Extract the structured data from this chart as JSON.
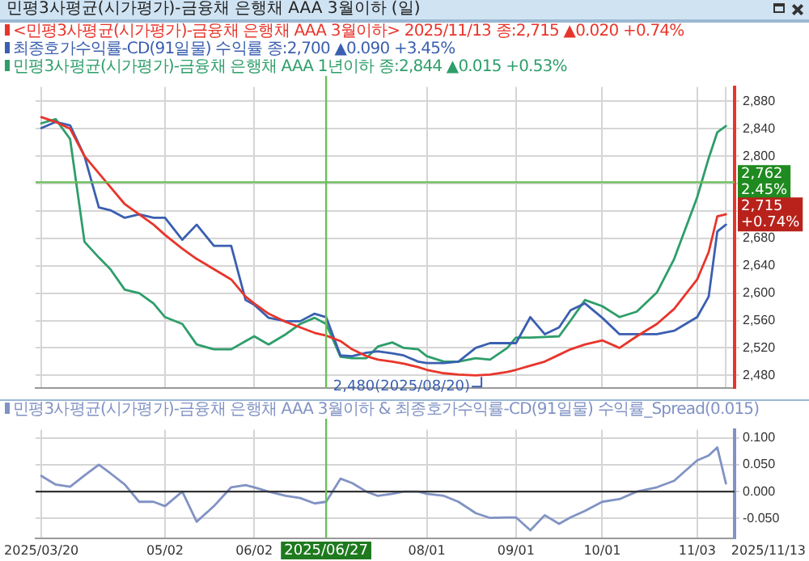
{
  "chart_data": [
    {
      "type": "line",
      "title": "민평3사평균(시가평가)-금융채 은행채 AAA 3월이하 (일)",
      "x": [
        "2025-03-20",
        "2025-03-25",
        "2025-03-30",
        "2025-04-04",
        "2025-04-09",
        "2025-04-13",
        "2025-04-18",
        "2025-04-23",
        "2025-04-28",
        "2025-05-02",
        "2025-05-08",
        "2025-05-13",
        "2025-05-19",
        "2025-05-25",
        "2025-05-30",
        "2025-06-02",
        "2025-06-07",
        "2025-06-13",
        "2025-06-18",
        "2025-06-23",
        "2025-06-27",
        "2025-07-02",
        "2025-07-06",
        "2025-07-11",
        "2025-07-15",
        "2025-07-20",
        "2025-07-24",
        "2025-07-29",
        "2025-08-01",
        "2025-08-07",
        "2025-08-12",
        "2025-08-18",
        "2025-08-23",
        "2025-08-29",
        "2025-09-01",
        "2025-09-06",
        "2025-09-11",
        "2025-09-16",
        "2025-09-20",
        "2025-09-25",
        "2025-10-01",
        "2025-10-07",
        "2025-10-13",
        "2025-10-20",
        "2025-10-26",
        "2025-11-03",
        "2025-11-07",
        "2025-11-10",
        "2025-11-13"
      ],
      "series": [
        {
          "name": "<민평3사평균(시가평가)-금융채 은행채 AAA 3월이하> 2025/11/13 종:2,715 ▲0.020 +0.74%",
          "color": "#e8352b",
          "values": [
            2857,
            2850,
            2840,
            2800,
            2775,
            2755,
            2730,
            2715,
            2700,
            2685,
            2665,
            2650,
            2635,
            2620,
            2595,
            2585,
            2570,
            2558,
            2550,
            2542,
            2538,
            2530,
            2518,
            2508,
            2503,
            2500,
            2497,
            2492,
            2488,
            2483,
            2481,
            2480,
            2481,
            2485,
            2488,
            2494,
            2500,
            2510,
            2518,
            2525,
            2531,
            2520,
            2537,
            2555,
            2577,
            2620,
            2660,
            2712,
            2715
          ]
        },
        {
          "name": "최종호가수익률-CD(91일물) 수익률 종:2,700 ▲0.090 +3.45%",
          "color": "#3a5fb0",
          "values": [
            2841,
            2850,
            2845,
            2800,
            2725,
            2721,
            2710,
            2715,
            2710,
            2710,
            2678,
            2700,
            2669,
            2669,
            2590,
            2583,
            2564,
            2559,
            2559,
            2570,
            2565,
            2509,
            2508,
            2513,
            2515,
            2512,
            2509,
            2500,
            2498,
            2498,
            2500,
            2520,
            2527,
            2527,
            2527,
            2565,
            2540,
            2550,
            2575,
            2585,
            2564,
            2540,
            2540,
            2540,
            2545,
            2565,
            2595,
            2690,
            2700
          ]
        },
        {
          "name": "민평3사평균(시가평가)-금융채 은행채 AAA 1년이하 종:2,844 ▲0.015 +0.53%",
          "color": "#2e9e6a",
          "values": [
            2848,
            2854,
            2825,
            2675,
            2652,
            2635,
            2605,
            2600,
            2585,
            2565,
            2555,
            2525,
            2518,
            2518,
            2530,
            2537,
            2525,
            2540,
            2555,
            2564,
            2555,
            2507,
            2505,
            2505,
            2522,
            2528,
            2520,
            2518,
            2508,
            2500,
            2500,
            2505,
            2503,
            2520,
            2535,
            2535,
            2536,
            2537,
            2560,
            2590,
            2581,
            2565,
            2573,
            2601,
            2650,
            2740,
            2797,
            2835,
            2844
          ]
        }
      ],
      "xlim": [
        "2025-03-18",
        "2025-11-16"
      ],
      "xticks": [
        {
          "value": "2025-03-20",
          "label": null
        },
        {
          "value": "2025-05-02",
          "label": null
        },
        {
          "value": "2025-06-02",
          "label": null
        },
        {
          "value": "2025-08-01",
          "label": null
        },
        {
          "value": "2025-09-01",
          "label": null
        },
        {
          "value": "2025-10-01",
          "label": null
        },
        {
          "value": "2025-11-03",
          "label": null
        },
        {
          "value": "2025-11-13",
          "label": null
        }
      ],
      "ylim": [
        2461,
        2901
      ],
      "yticks": [
        {
          "value": 2480,
          "label": "2,480"
        },
        {
          "value": 2520,
          "label": "2,520"
        },
        {
          "value": 2560,
          "label": "2,560"
        },
        {
          "value": 2600,
          "label": "2,600"
        },
        {
          "value": 2640,
          "label": "2,640"
        },
        {
          "value": 2680,
          "label": "2,680"
        },
        {
          "value": 2720,
          "label": null
        },
        {
          "value": 2760,
          "label": null
        },
        {
          "value": 2800,
          "label": "2,800"
        },
        {
          "value": 2840,
          "label": "2,840"
        },
        {
          "value": 2880,
          "label": "2,880"
        }
      ],
      "tick_labels": "y",
      "grid": true,
      "legend": "top left",
      "marker": "none",
      "line_style": "solid",
      "ref_lines": [
        {
          "axis": "y",
          "value": 2762,
          "label": "2,762\n2.45%",
          "color": "#6abf5a"
        },
        {
          "axis": "x",
          "value": "2025-06-27",
          "color": "#6abf5a"
        }
      ],
      "annotations": [
        {
          "text": "2,480(2025/08/20)",
          "x": "2025-08-20",
          "y": 2480
        },
        {
          "text": "2,715\n+0.74%",
          "x": "2025-11-13",
          "y": 2715
        }
      ]
    },
    {
      "type": "line",
      "x": [
        "2025-03-20",
        "2025-03-25",
        "2025-03-30",
        "2025-04-04",
        "2025-04-09",
        "2025-04-13",
        "2025-04-18",
        "2025-04-23",
        "2025-04-28",
        "2025-05-02",
        "2025-05-08",
        "2025-05-13",
        "2025-05-19",
        "2025-05-25",
        "2025-05-30",
        "2025-06-02",
        "2025-06-07",
        "2025-06-13",
        "2025-06-18",
        "2025-06-23",
        "2025-06-27",
        "2025-07-02",
        "2025-07-06",
        "2025-07-11",
        "2025-07-15",
        "2025-07-20",
        "2025-07-24",
        "2025-07-29",
        "2025-08-01",
        "2025-08-07",
        "2025-08-12",
        "2025-08-18",
        "2025-08-23",
        "2025-08-29",
        "2025-09-01",
        "2025-09-06",
        "2025-09-11",
        "2025-09-16",
        "2025-09-20",
        "2025-09-25",
        "2025-10-01",
        "2025-10-07",
        "2025-10-13",
        "2025-10-20",
        "2025-10-26",
        "2025-11-03",
        "2025-11-07",
        "2025-11-10",
        "2025-11-13"
      ],
      "series": [
        {
          "name": "민평3사평균(시가평가)-금융채 은행채 AAA 3월이하 & 최종호가수익률-CD(91일물) 수익률_Spread(0.015)",
          "color": "#8193c4",
          "values": [
            0.029,
            0.013,
            0.009,
            0.03,
            0.05,
            0.034,
            0.013,
            -0.019,
            -0.019,
            -0.027,
            0.0,
            -0.056,
            -0.027,
            0.008,
            0.012,
            0.008,
            0.0,
            -0.008,
            -0.012,
            -0.022,
            -0.019,
            0.024,
            0.016,
            0.0,
            -0.008,
            -0.004,
            0.0,
            0.0,
            -0.004,
            -0.008,
            -0.019,
            -0.04,
            -0.049,
            -0.048,
            -0.048,
            -0.072,
            -0.044,
            -0.06,
            -0.048,
            -0.036,
            -0.019,
            -0.014,
            0.0,
            0.008,
            0.02,
            0.058,
            0.067,
            0.082,
            0.015
          ]
        }
      ],
      "xlim": [
        "2025-03-18",
        "2025-11-16"
      ],
      "xticks": [
        {
          "value": "2025-03-20",
          "label": "2025/03/20"
        },
        {
          "value": "2025-05-02",
          "label": "05/02"
        },
        {
          "value": "2025-06-02",
          "label": "06/02"
        },
        {
          "value": "2025-08-01",
          "label": "08/01"
        },
        {
          "value": "2025-09-01",
          "label": "09/01"
        },
        {
          "value": "2025-10-01",
          "label": "10/01"
        },
        {
          "value": "2025-11-03",
          "label": "11/03"
        }
      ],
      "ylim": [
        -0.087,
        0.115
      ],
      "annotations": [
        "2025/11/13"
      ],
      "yticks": [
        {
          "value": -0.05,
          "label": "-0.050"
        },
        {
          "value": 0,
          "label": "0.000"
        },
        {
          "value": 0.05,
          "label": "0.050"
        },
        {
          "value": 0.1,
          "label": "0.100"
        }
      ],
      "grid": true,
      "legend": "top left",
      "marker": "none",
      "line_style": "solid",
      "ref_lines": [
        {
          "axis": "y",
          "value": 0,
          "color": "#333333"
        },
        {
          "axis": "x",
          "value": "2025-06-27",
          "label": "2025/06/27",
          "color": "#6abf5a"
        }
      ]
    }
  ]
}
